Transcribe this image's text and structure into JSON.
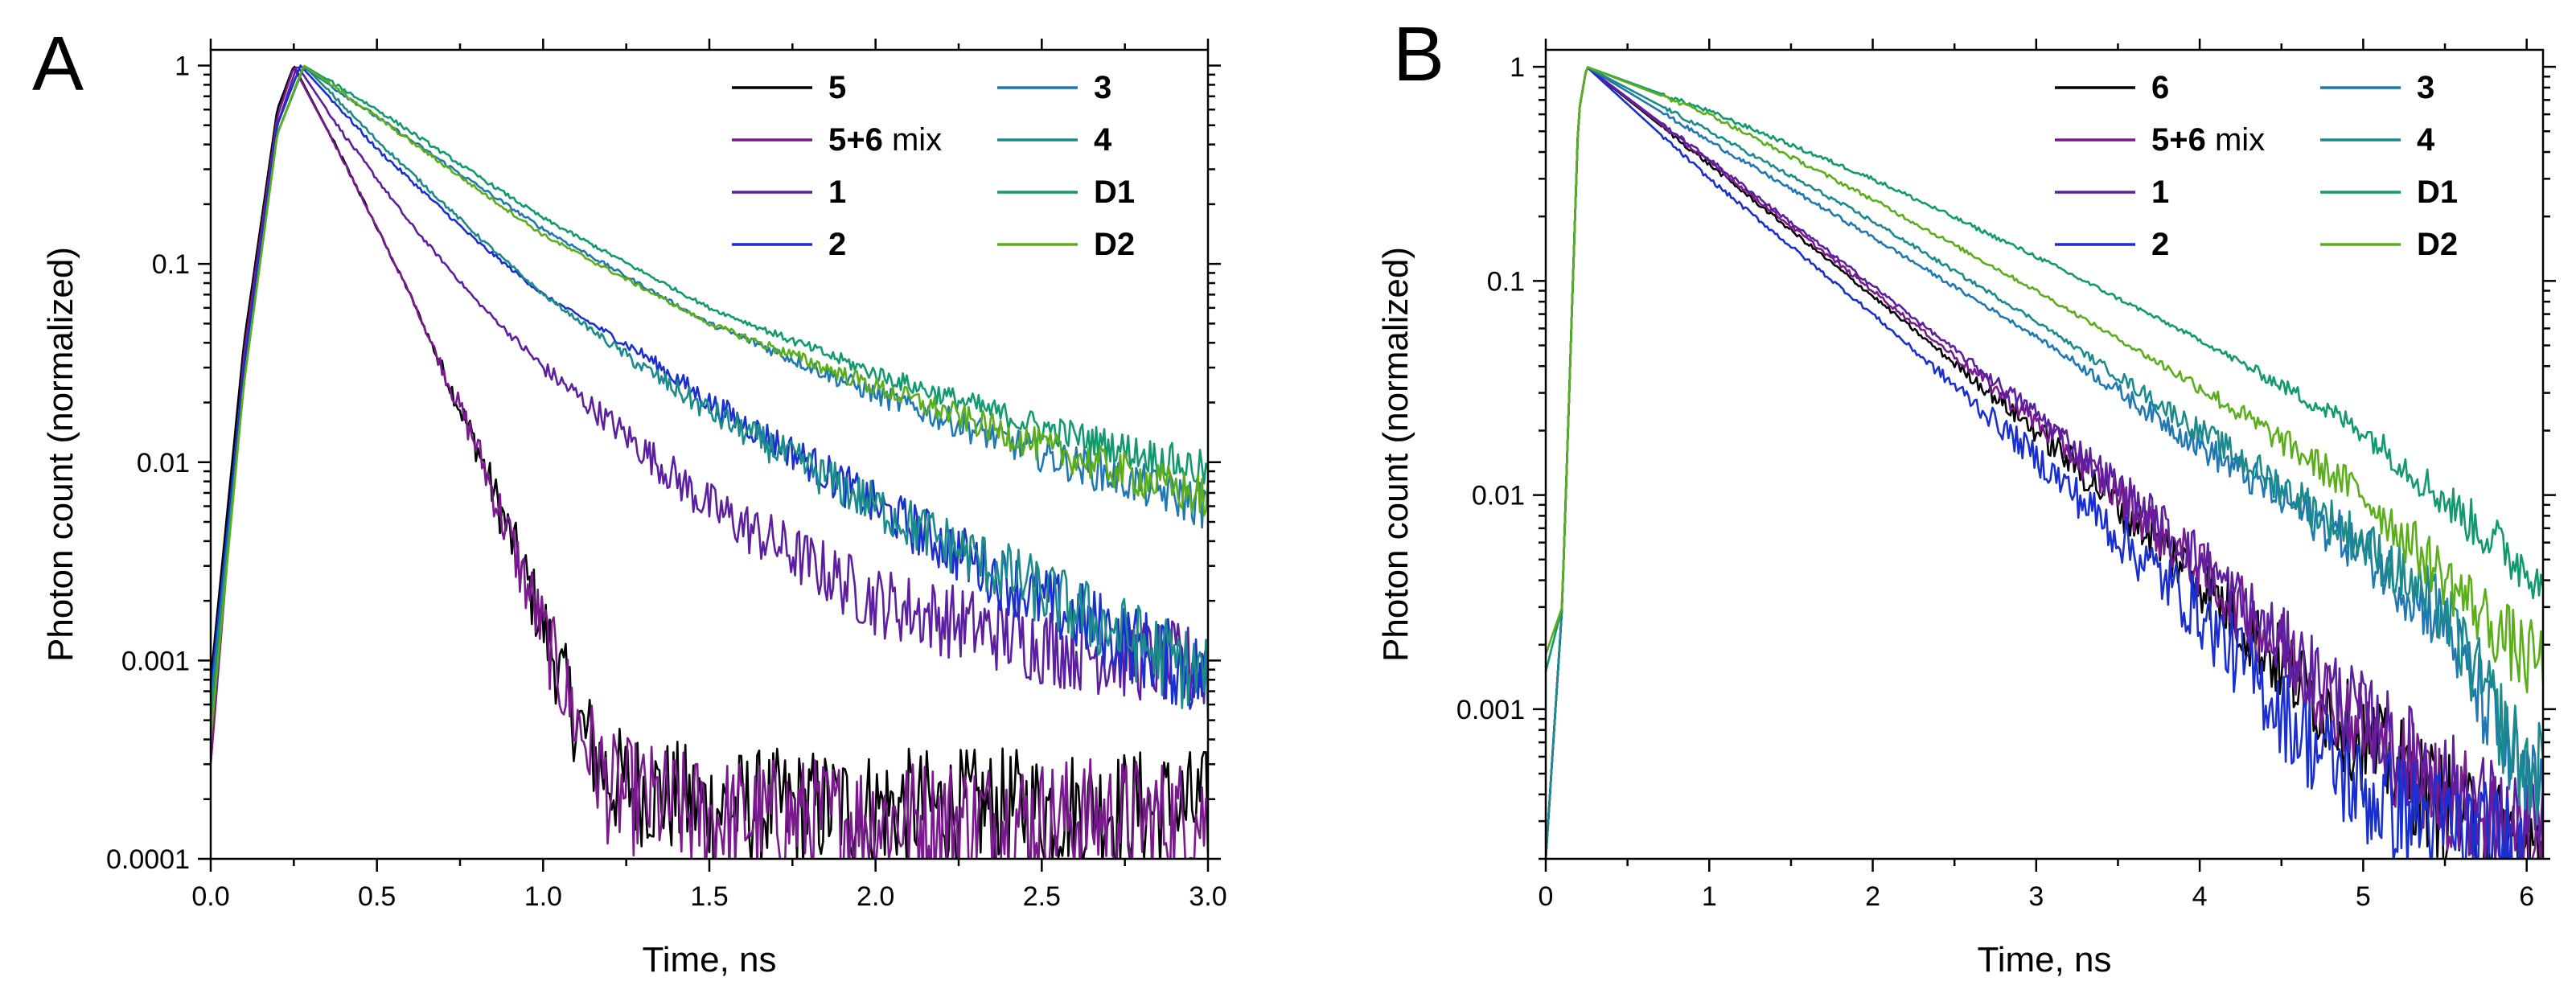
{
  "colors": {
    "black": "#000000",
    "purple": "#7b1a8f",
    "violet": "#5b1fa0",
    "blue": "#1a2fd0",
    "steel_blue": "#1f77b4",
    "teal": "#1a8a8a",
    "green_teal": "#119a6e",
    "lime": "#5aae1a"
  },
  "chart_data": [
    {
      "panel_label": "A",
      "type": "line",
      "yscale": "log",
      "xlabel": "Time, ns",
      "ylabel": "Photon count (normalized)",
      "xlim": [
        0,
        3
      ],
      "ylim": [
        0.0001,
        1.2
      ],
      "xticks": [
        0,
        0.5,
        1,
        1.5,
        2,
        2.5,
        3
      ],
      "xtick_labels": [
        "0.0",
        "0.5",
        "1.0",
        "1.5",
        "2.0",
        "2.5",
        "3.0"
      ],
      "yticks": [
        0.0001,
        0.001,
        0.01,
        0.1,
        1
      ],
      "ytick_labels": [
        "0.0001",
        "0.001",
        "0.01",
        "0.1",
        "1"
      ],
      "legend": [
        {
          "bold": "5",
          "rest": "",
          "color": "black"
        },
        {
          "bold": "5+6",
          "rest": " mix",
          "color": "purple"
        },
        {
          "bold": "1",
          "rest": "",
          "color": "violet"
        },
        {
          "bold": "2",
          "rest": "",
          "color": "blue"
        },
        {
          "bold": "3",
          "rest": "",
          "color": "steel_blue"
        },
        {
          "bold": "4",
          "rest": "",
          "color": "teal"
        },
        {
          "bold": "D1",
          "rest": "",
          "color": "green_teal"
        },
        {
          "bold": "D2",
          "rest": "",
          "color": "lime"
        }
      ],
      "series": [
        {
          "name": "5",
          "color": "black",
          "x": [
            0.0,
            0.1,
            0.2,
            0.25,
            0.4,
            0.6,
            0.8,
            1.0,
            1.1,
            1.2,
            1.5,
            2.0,
            2.5,
            3.0
          ],
          "y": [
            0.0008,
            0.04,
            0.6,
            1.0,
            0.33,
            0.07,
            0.012,
            0.0015,
            0.0005,
            0.00025,
            0.00018,
            0.00018,
            0.00018,
            0.00018
          ]
        },
        {
          "name": "5+6 mix",
          "color": "purple",
          "x": [
            0.0,
            0.1,
            0.2,
            0.25,
            0.4,
            0.6,
            0.8,
            1.0,
            1.1,
            1.2,
            1.5,
            2.0,
            2.5,
            3.0
          ],
          "y": [
            0.0003,
            0.035,
            0.55,
            0.98,
            0.33,
            0.07,
            0.012,
            0.0014,
            0.0005,
            0.00022,
            0.00016,
            0.00016,
            0.00016,
            0.00016
          ]
        },
        {
          "name": "1",
          "color": "violet",
          "x": [
            0.0,
            0.1,
            0.2,
            0.26,
            0.4,
            0.6,
            0.8,
            1.0,
            1.2,
            1.5,
            2.0,
            2.5,
            3.0
          ],
          "y": [
            0.0006,
            0.03,
            0.5,
            1.0,
            0.45,
            0.16,
            0.065,
            0.03,
            0.016,
            0.006,
            0.002,
            0.0012,
            0.0009
          ]
        },
        {
          "name": "2",
          "color": "blue",
          "x": [
            0.0,
            0.1,
            0.2,
            0.27,
            0.5,
            0.8,
            1.0,
            1.3,
            1.5,
            1.8,
            2.0,
            2.5,
            3.0
          ],
          "y": [
            0.0007,
            0.03,
            0.5,
            1.0,
            0.38,
            0.13,
            0.07,
            0.035,
            0.02,
            0.01,
            0.006,
            0.002,
            0.0008
          ]
        },
        {
          "name": "3",
          "color": "steel_blue",
          "x": [
            0.0,
            0.1,
            0.2,
            0.28,
            0.5,
            0.8,
            1.0,
            1.5,
            2.0,
            2.5,
            3.0
          ],
          "y": [
            0.0006,
            0.025,
            0.45,
            0.98,
            0.55,
            0.25,
            0.15,
            0.05,
            0.022,
            0.011,
            0.006
          ]
        },
        {
          "name": "4",
          "color": "teal",
          "x": [
            0.0,
            0.1,
            0.2,
            0.28,
            0.5,
            0.8,
            1.0,
            1.3,
            1.5,
            2.0,
            2.5,
            3.0
          ],
          "y": [
            0.0005,
            0.025,
            0.45,
            1.0,
            0.42,
            0.14,
            0.07,
            0.03,
            0.018,
            0.006,
            0.0022,
            0.0008
          ]
        },
        {
          "name": "D1",
          "color": "green_teal",
          "x": [
            0.0,
            0.1,
            0.2,
            0.28,
            0.5,
            0.8,
            1.0,
            1.5,
            2.0,
            2.5,
            3.0
          ],
          "y": [
            0.0005,
            0.025,
            0.45,
            1.0,
            0.6,
            0.28,
            0.17,
            0.06,
            0.028,
            0.015,
            0.009
          ]
        },
        {
          "name": "D2",
          "color": "lime",
          "x": [
            0.0,
            0.1,
            0.2,
            0.28,
            0.5,
            0.8,
            1.0,
            1.5,
            2.0,
            2.5,
            3.0
          ],
          "y": [
            0.0004,
            0.025,
            0.45,
            1.0,
            0.55,
            0.24,
            0.14,
            0.05,
            0.024,
            0.012,
            0.0065
          ]
        }
      ]
    },
    {
      "panel_label": "B",
      "type": "line",
      "yscale": "log",
      "xlabel": "Time, ns",
      "ylabel": "Photon count (normalized)",
      "xlim": [
        0,
        6.1
      ],
      "ylim": [
        0.0002,
        1.2
      ],
      "xticks": [
        0,
        1,
        2,
        3,
        4,
        5,
        6
      ],
      "xtick_labels": [
        "0",
        "1",
        "2",
        "3",
        "4",
        "5",
        "6"
      ],
      "yticks": [
        0.001,
        0.01,
        0.1,
        1
      ],
      "ytick_labels": [
        "0.001",
        "0.01",
        "0.1",
        "1"
      ],
      "legend": [
        {
          "bold": "6",
          "rest": "",
          "color": "black"
        },
        {
          "bold": "5+6",
          "rest": " mix",
          "color": "purple"
        },
        {
          "bold": "1",
          "rest": "",
          "color": "violet"
        },
        {
          "bold": "2",
          "rest": "",
          "color": "blue"
        },
        {
          "bold": "3",
          "rest": "",
          "color": "steel_blue"
        },
        {
          "bold": "4",
          "rest": "",
          "color": "teal"
        },
        {
          "bold": "D1",
          "rest": "",
          "color": "green_teal"
        },
        {
          "bold": "D2",
          "rest": "",
          "color": "lime"
        }
      ],
      "series": [
        {
          "name": "6",
          "color": "black",
          "x": [
            0.0,
            0.1,
            0.2,
            0.25,
            1.0,
            2.0,
            3.0,
            3.5,
            4.0,
            4.5,
            5.0,
            5.5,
            6.0
          ],
          "y": [
            0.0002,
            0.003,
            0.6,
            1.0,
            0.35,
            0.085,
            0.02,
            0.009,
            0.004,
            0.0016,
            0.0007,
            0.00035,
            0.0002
          ]
        },
        {
          "name": "5+6 mix",
          "color": "purple",
          "x": [
            0.0,
            0.1,
            0.2,
            0.25,
            1.0,
            2.0,
            3.0,
            3.5,
            4.0,
            4.5,
            5.0,
            5.5,
            6.0
          ],
          "y": [
            0.0002,
            0.003,
            0.6,
            1.0,
            0.36,
            0.09,
            0.022,
            0.01,
            0.0045,
            0.0019,
            0.0008,
            0.0004,
            0.00025
          ]
        },
        {
          "name": "1",
          "color": "violet",
          "x": [
            0.0,
            0.1,
            0.2,
            0.25,
            1.0,
            2.0,
            3.0,
            3.5,
            4.0,
            4.5,
            5.0,
            5.5,
            6.0
          ],
          "y": [
            0.0002,
            0.003,
            0.6,
            1.0,
            0.37,
            0.095,
            0.024,
            0.011,
            0.005,
            0.002,
            0.0009,
            0.00045,
            0.00025
          ]
        },
        {
          "name": "2",
          "color": "blue",
          "x": [
            0.0,
            0.1,
            0.2,
            0.25,
            1.0,
            2.0,
            3.0,
            3.5,
            4.0,
            4.3,
            4.6,
            5.0,
            6.0
          ],
          "y": [
            0.0002,
            0.003,
            0.6,
            1.0,
            0.3,
            0.07,
            0.015,
            0.0065,
            0.0028,
            0.0015,
            0.0008,
            0.0004,
            0.0002
          ]
        },
        {
          "name": "3",
          "color": "steel_blue",
          "x": [
            0.0,
            0.1,
            0.2,
            0.25,
            1.0,
            2.0,
            3.0,
            4.0,
            5.0,
            5.5,
            6.0
          ],
          "y": [
            0.0002,
            0.003,
            0.6,
            1.0,
            0.45,
            0.16,
            0.055,
            0.017,
            0.0055,
            0.0025,
            0.0004
          ]
        },
        {
          "name": "4",
          "color": "teal",
          "x": [
            0.0,
            0.1,
            0.2,
            0.25,
            1.0,
            2.0,
            3.0,
            4.0,
            5.0,
            5.5,
            6.0
          ],
          "y": [
            0.0002,
            0.003,
            0.6,
            1.0,
            0.5,
            0.19,
            0.065,
            0.02,
            0.006,
            0.0028,
            0.0005
          ]
        },
        {
          "name": "D1",
          "color": "green_teal",
          "x": [
            0.0,
            0.1,
            0.2,
            0.25,
            1.0,
            2.0,
            3.0,
            4.0,
            5.0,
            6.0
          ],
          "y": [
            0.0015,
            0.003,
            0.6,
            1.0,
            0.62,
            0.3,
            0.13,
            0.053,
            0.02,
            0.0045
          ]
        },
        {
          "name": "D2",
          "color": "lime",
          "x": [
            0.0,
            0.1,
            0.2,
            0.25,
            1.0,
            2.0,
            3.0,
            4.0,
            5.0,
            6.0
          ],
          "y": [
            0.0018,
            0.003,
            0.6,
            1.0,
            0.6,
            0.24,
            0.09,
            0.032,
            0.01,
            0.0017
          ]
        }
      ]
    }
  ]
}
